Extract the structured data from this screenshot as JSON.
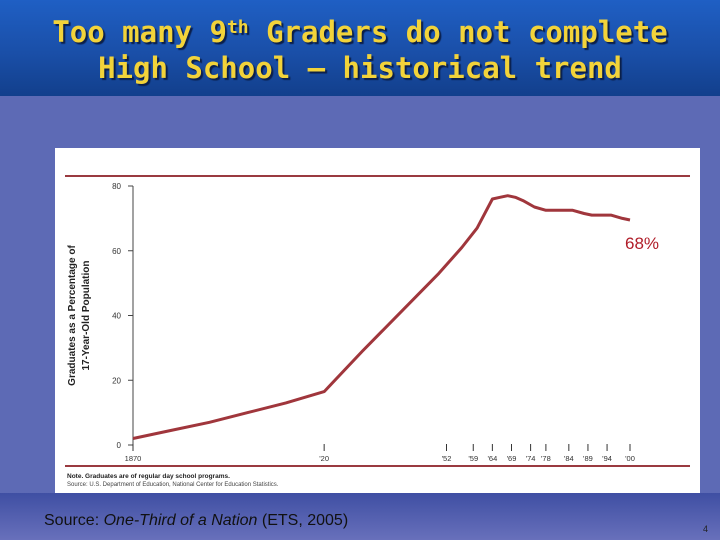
{
  "slide": {
    "title_line1_pre": "Too many 9",
    "title_sup": "th",
    "title_line1_post": " Graders do not complete",
    "title_line2": "High School – historical trend",
    "source_prefix": "Source: ",
    "source_italic": "One-Third of a Nation",
    "source_suffix": " (ETS, 2005)",
    "page_number": "4",
    "callout": "68%"
  },
  "colors": {
    "line": "#a0363c",
    "rule": "#9a3a40",
    "title": "#f2d33a",
    "callout": "#b01c28"
  },
  "chart_data": {
    "type": "line",
    "title": "",
    "ylabel_line1": "Graduates as a Percentage of",
    "ylabel_line2": "17-Year-Old Population",
    "xlabel": "",
    "ylim": [
      0,
      80
    ],
    "yticks": [
      0,
      20,
      40,
      60,
      80
    ],
    "xlim": [
      1870,
      2000
    ],
    "xticks": [
      {
        "year": 1870,
        "label": "1870"
      },
      {
        "year": 1920,
        "label": "'20"
      },
      {
        "year": 1952,
        "label": "'52"
      },
      {
        "year": 1959,
        "label": "'59"
      },
      {
        "year": 1964,
        "label": "'64"
      },
      {
        "year": 1969,
        "label": "'69"
      },
      {
        "year": 1974,
        "label": "'74"
      },
      {
        "year": 1978,
        "label": "'78"
      },
      {
        "year": 1984,
        "label": "'84"
      },
      {
        "year": 1989,
        "label": "'89"
      },
      {
        "year": 1994,
        "label": "'94"
      },
      {
        "year": 2000,
        "label": "'00"
      }
    ],
    "series": [
      {
        "x": [
          1870,
          1880,
          1890,
          1900,
          1910,
          1920,
          1930,
          1940,
          1950,
          1956,
          1960,
          1964,
          1966,
          1968,
          1970,
          1972,
          1975,
          1978,
          1980,
          1982,
          1985,
          1988,
          1990,
          1992,
          1995,
          1998,
          2000
        ],
        "y": [
          2.0,
          4.5,
          7.0,
          10.0,
          13.0,
          16.5,
          29.0,
          41.0,
          53.0,
          61.0,
          67.0,
          76.0,
          76.5,
          77.0,
          76.5,
          75.5,
          73.5,
          72.5,
          72.5,
          72.5,
          72.5,
          71.5,
          71.0,
          71.0,
          71.0,
          70.0,
          69.5
        ]
      }
    ],
    "note_line1": "Note. Graduates are of regular day school programs.",
    "note_line2": "Source: U.S. Department of Education, National Center for Education Statistics."
  }
}
